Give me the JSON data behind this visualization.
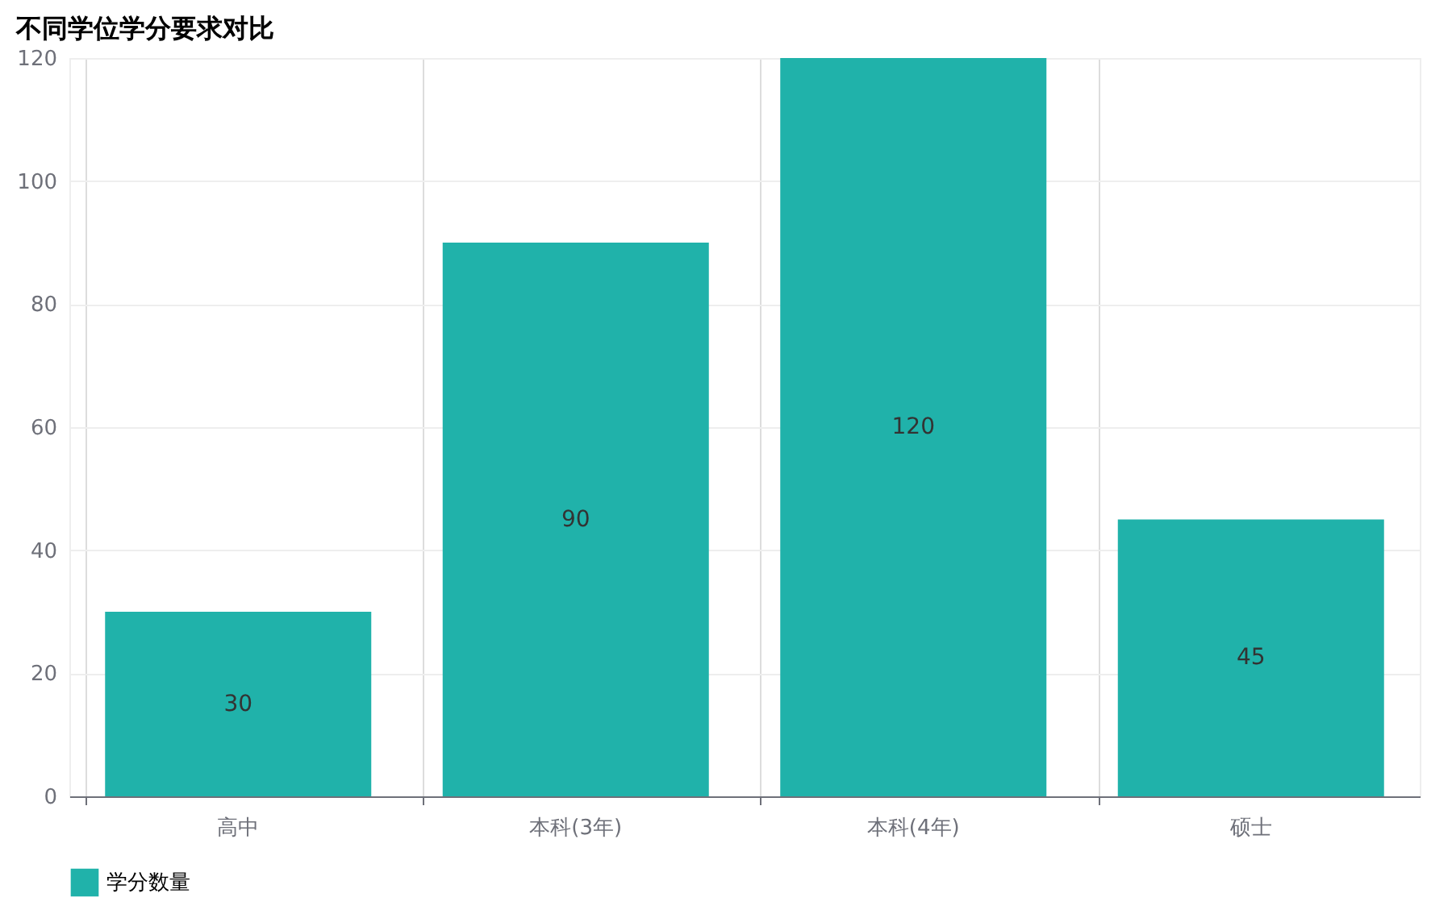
{
  "chart_data": {
    "type": "bar",
    "title": "不同学位学分要求对比",
    "categories": [
      "高中",
      "本科(3年)",
      "本科(4年)",
      "硕士"
    ],
    "series": [
      {
        "name": "学分数量",
        "color": "#20b2aa",
        "values": [
          30,
          90,
          120,
          45
        ]
      }
    ],
    "ylim": [
      0,
      120
    ],
    "yticks": [
      0,
      20,
      40,
      60,
      80,
      100,
      120
    ],
    "grid": true,
    "legend": "bottom",
    "data_labels": true
  }
}
